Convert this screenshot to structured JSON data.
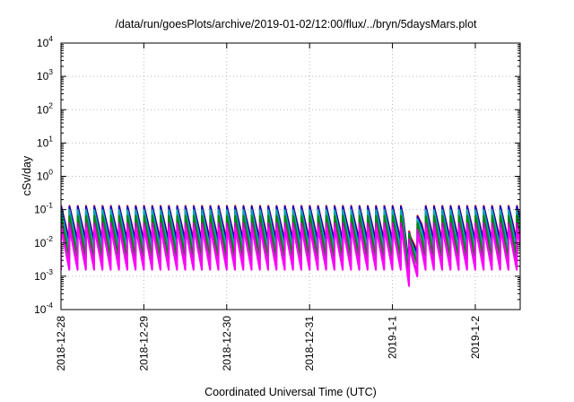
{
  "chart_data": {
    "type": "line",
    "title": "/data/run/goesPlots/archive/2019-01-02/12:00/flux/../bryn/5daysMars.plot",
    "xlabel": "Coordinated Universal Time (UTC)",
    "ylabel": "cSv/day",
    "y_scale": "log",
    "ylim": [
      0.0001,
      10000
    ],
    "y_ticks": [
      {
        "base": "10",
        "exp": "-4",
        "value": 0.0001
      },
      {
        "base": "10",
        "exp": "-3",
        "value": 0.001
      },
      {
        "base": "10",
        "exp": "-2",
        "value": 0.01
      },
      {
        "base": "10",
        "exp": "-1",
        "value": 0.1
      },
      {
        "base": "10",
        "exp": "0",
        "value": 1
      },
      {
        "base": "10",
        "exp": "1",
        "value": 10
      },
      {
        "base": "10",
        "exp": "2",
        "value": 100
      },
      {
        "base": "10",
        "exp": "3",
        "value": 1000
      },
      {
        "base": "10",
        "exp": "4",
        "value": 10000
      }
    ],
    "xlim": [
      "2018-12-28T00:00",
      "2019-01-02T13:00"
    ],
    "x_ticks": [
      {
        "label": "2018-12-28",
        "value": "2018-12-28T00:00"
      },
      {
        "label": "2018-12-29",
        "value": "2018-12-29T00:00"
      },
      {
        "label": "2018-12-30",
        "value": "2018-12-30T00:00"
      },
      {
        "label": "2018-12-31",
        "value": "2018-12-31T00:00"
      },
      {
        "label": "2019-1-1",
        "value": "2019-01-01T00:00"
      },
      {
        "label": "2019-1-2",
        "value": "2019-01-02T00:00"
      }
    ],
    "grid": true,
    "pattern": {
      "sawtooth_period_hours": 2.4,
      "peak_value": 0.13,
      "trough_value": 0.012
    },
    "event": {
      "start": "2019-01-01T03:00",
      "minimum": "2019-01-01T05:00",
      "end": "2019-01-01T08:30",
      "minimum_value_lowest_series": 0.00045
    },
    "series": [
      {
        "color": "#ff0000",
        "peak_factor": 1.0,
        "trough_factor": 1.0,
        "event_min_factor": 4.0
      },
      {
        "color": "#0000cc",
        "peak_factor": 0.95,
        "trough_factor": 0.85,
        "event_min_factor": 3.2
      },
      {
        "color": "#00aaaa",
        "peak_factor": 0.75,
        "trough_factor": 0.55,
        "event_min_factor": 2.5
      },
      {
        "color": "#008800",
        "peak_factor": 0.5,
        "trough_factor": 0.3,
        "event_min_factor": 2.0
      },
      {
        "color": "#cc00cc",
        "peak_factor": 0.3,
        "trough_factor": 0.15,
        "event_min_factor": 1.2
      },
      {
        "color": "#ff00ff",
        "peak_factor": 0.22,
        "trough_factor": 0.13,
        "event_min_factor": 1.0
      }
    ]
  }
}
